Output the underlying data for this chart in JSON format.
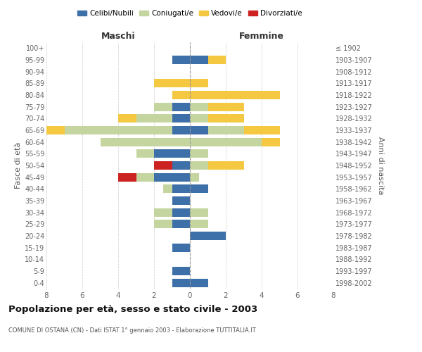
{
  "age_groups": [
    "0-4",
    "5-9",
    "10-14",
    "15-19",
    "20-24",
    "25-29",
    "30-34",
    "35-39",
    "40-44",
    "45-49",
    "50-54",
    "55-59",
    "60-64",
    "65-69",
    "70-74",
    "75-79",
    "80-84",
    "85-89",
    "90-94",
    "95-99",
    "100+"
  ],
  "birth_years": [
    "1998-2002",
    "1993-1997",
    "1988-1992",
    "1983-1987",
    "1978-1982",
    "1973-1977",
    "1968-1972",
    "1963-1967",
    "1958-1962",
    "1953-1957",
    "1948-1952",
    "1943-1947",
    "1938-1942",
    "1933-1937",
    "1928-1932",
    "1923-1927",
    "1918-1922",
    "1913-1917",
    "1908-1912",
    "1903-1907",
    "≤ 1902"
  ],
  "male": {
    "celibi": [
      1,
      1,
      0,
      1,
      0,
      1,
      1,
      1,
      1,
      2,
      1,
      2,
      0,
      1,
      1,
      1,
      0,
      0,
      0,
      1,
      0
    ],
    "coniugati": [
      0,
      0,
      0,
      0,
      0,
      1,
      1,
      0,
      0.5,
      1,
      0,
      1,
      5,
      6,
      2,
      1,
      0,
      0,
      0,
      0,
      0
    ],
    "vedovi": [
      0,
      0,
      0,
      0,
      0,
      0,
      0,
      0,
      0,
      0,
      0,
      0,
      0,
      1,
      1,
      0,
      1,
      2,
      0,
      0,
      0
    ],
    "divorziati": [
      0,
      0,
      0,
      0,
      0,
      0,
      0,
      0,
      0,
      1,
      1,
      0,
      0,
      0,
      0,
      0,
      0,
      0,
      0,
      0,
      0
    ]
  },
  "female": {
    "celibi": [
      1,
      0,
      0,
      0,
      2,
      0,
      0,
      0,
      1,
      0,
      0,
      0,
      0,
      1,
      0,
      0,
      0,
      0,
      0,
      1,
      0
    ],
    "coniugati": [
      0,
      0,
      0,
      0,
      0,
      1,
      1,
      0,
      0,
      0.5,
      1,
      1,
      4,
      2,
      1,
      1,
      0,
      0,
      0,
      0,
      0
    ],
    "vedovi": [
      0,
      0,
      0,
      0,
      0,
      0,
      0,
      0,
      0,
      0,
      2,
      0,
      1,
      2,
      2,
      2,
      5,
      1,
      0,
      1,
      0
    ],
    "divorziati": [
      0,
      0,
      0,
      0,
      0,
      0,
      0,
      0,
      0,
      0,
      0,
      0,
      0,
      0,
      0,
      0,
      0,
      0,
      0,
      0,
      0
    ]
  },
  "colors": {
    "celibi": "#3d6fa8",
    "coniugati": "#c5d5a0",
    "vedovi": "#f5c842",
    "divorziati": "#cc2222"
  },
  "xlim": 8,
  "title": "Popolazione per età, sesso e stato civile - 2003",
  "subtitle": "COMUNE DI OSTANA (CN) - Dati ISTAT 1° gennaio 2003 - Elaborazione TUTTITALIA.IT",
  "ylabel_left": "Fasce di età",
  "ylabel_right": "Anni di nascita",
  "xlabel_maschi": "Maschi",
  "xlabel_femmine": "Femmine"
}
